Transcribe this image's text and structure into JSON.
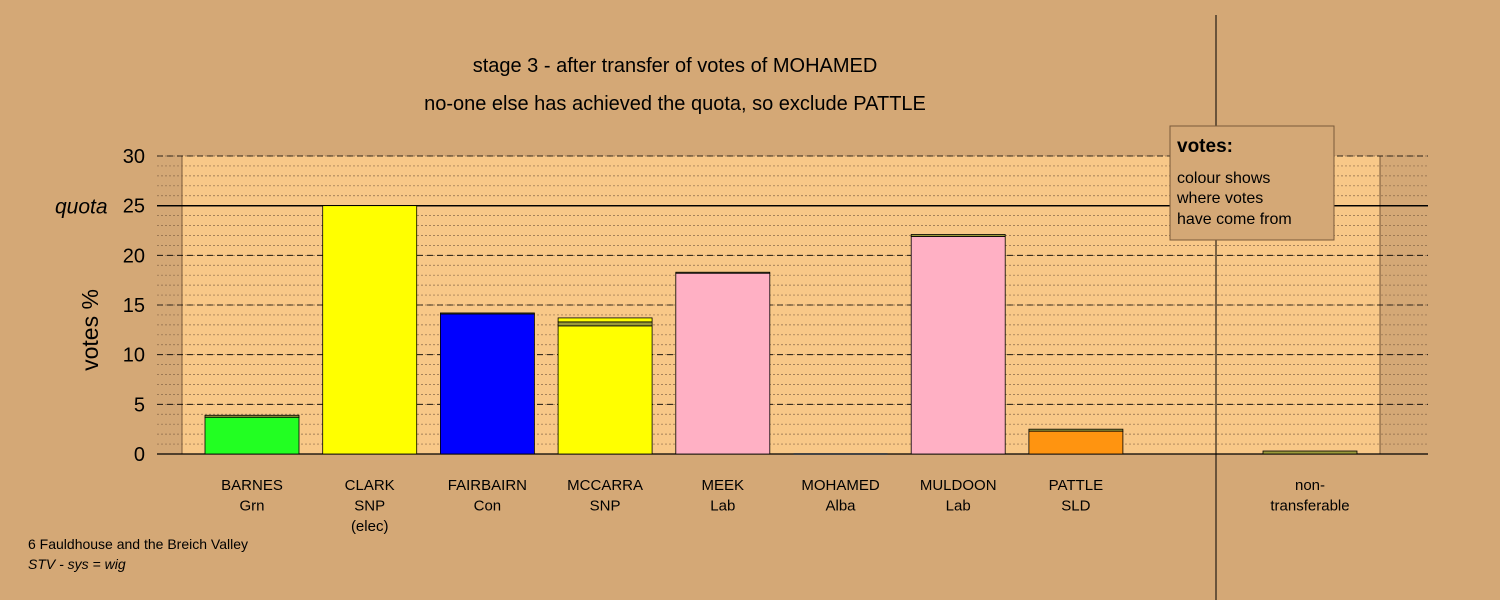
{
  "chart_data": {
    "type": "stacked-bar",
    "title": "stage 3 - after transfer of votes of MOHAMED",
    "subtitle": "no-one else has achieved the quota, so exclude PATTLE",
    "y_label": "votes %",
    "ylim": [
      0,
      30
    ],
    "yticks": [
      0,
      5,
      10,
      15,
      20,
      25,
      30
    ],
    "minor_step": 1,
    "quota": {
      "value": 25,
      "label": "quota"
    },
    "bars": [
      {
        "label": [
          "BARNES",
          "Grn"
        ],
        "segments": [
          {
            "value": 3.7,
            "color": "#22ff22"
          },
          {
            "value": 0.2,
            "color": "#9a9a3a"
          }
        ]
      },
      {
        "label": [
          "CLARK",
          "SNP",
          "(elec)"
        ],
        "segments": [
          {
            "value": 25.0,
            "color": "#ffff00"
          }
        ]
      },
      {
        "label": [
          "FAIRBAIRN",
          "Con"
        ],
        "segments": [
          {
            "value": 14.1,
            "color": "#0000ff"
          },
          {
            "value": 0.1,
            "color": "#9a9a3a"
          }
        ]
      },
      {
        "label": [
          "MCCARRA",
          "SNP"
        ],
        "segments": [
          {
            "value": 12.9,
            "color": "#ffff00"
          },
          {
            "value": 0.4,
            "color": "#9a9a3a"
          },
          {
            "value": 0.4,
            "color": "#ffff00"
          }
        ]
      },
      {
        "label": [
          "MEEK",
          "Lab"
        ],
        "segments": [
          {
            "value": 18.2,
            "color": "#ffb0c4"
          },
          {
            "value": 0.1,
            "color": "#9a9a3a"
          }
        ]
      },
      {
        "label": [
          "MOHAMED",
          "Alba"
        ],
        "segments": [
          {
            "value": 0,
            "color": "#9a9a3a"
          }
        ]
      },
      {
        "label": [
          "MULDOON",
          "Lab"
        ],
        "segments": [
          {
            "value": 21.9,
            "color": "#ffb0c4"
          },
          {
            "value": 0.2,
            "color": "#9a9a3a"
          }
        ]
      },
      {
        "label": [
          "PATTLE",
          "SLD"
        ],
        "segments": [
          {
            "value": 2.3,
            "color": "#ff9410"
          },
          {
            "value": 0.2,
            "color": "#9a9a3a"
          }
        ]
      },
      {
        "label": [
          "non-",
          "transferable"
        ],
        "separate": true,
        "segments": [
          {
            "value": 0.3,
            "color": "#9a9a3a"
          }
        ]
      }
    ],
    "note": {
      "heading": "votes:",
      "lines": [
        "colour shows",
        "where votes",
        "have come from"
      ]
    },
    "footer": [
      "6 Fauldhouse and the Breich Valley",
      "STV - sys = wig"
    ]
  }
}
